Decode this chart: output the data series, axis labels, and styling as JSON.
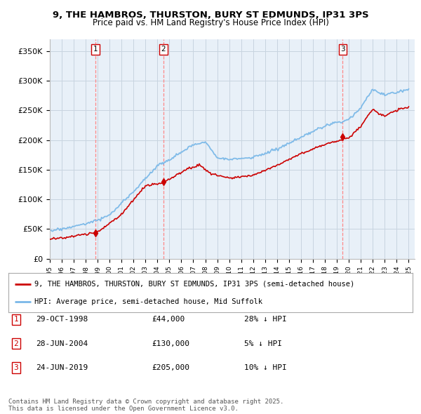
{
  "title_line1": "9, THE HAMBROS, THURSTON, BURY ST EDMUNDS, IP31 3PS",
  "title_line2": "Price paid vs. HM Land Registry's House Price Index (HPI)",
  "ylim": [
    0,
    370000
  ],
  "yticks": [
    0,
    50000,
    100000,
    150000,
    200000,
    250000,
    300000,
    350000
  ],
  "ytick_labels": [
    "£0",
    "£50K",
    "£100K",
    "£150K",
    "£200K",
    "£250K",
    "£300K",
    "£350K"
  ],
  "sale_dates": [
    1998.83,
    2004.49,
    2019.49
  ],
  "sale_prices": [
    44000,
    130000,
    205000
  ],
  "sale_labels": [
    "1",
    "2",
    "3"
  ],
  "legend_house": "9, THE HAMBROS, THURSTON, BURY ST EDMUNDS, IP31 3PS (semi-detached house)",
  "legend_hpi": "HPI: Average price, semi-detached house, Mid Suffolk",
  "table_entries": [
    {
      "label": "1",
      "date": "29-OCT-1998",
      "price": "£44,000",
      "hpi": "28% ↓ HPI"
    },
    {
      "label": "2",
      "date": "28-JUN-2004",
      "price": "£130,000",
      "hpi": "5% ↓ HPI"
    },
    {
      "label": "3",
      "date": "24-JUN-2019",
      "price": "£205,000",
      "hpi": "10% ↓ HPI"
    }
  ],
  "footer": "Contains HM Land Registry data © Crown copyright and database right 2025.\nThis data is licensed under the Open Government Licence v3.0.",
  "house_color": "#cc0000",
  "hpi_color": "#7ab8e8",
  "vline_color": "#ff8888",
  "chart_bg": "#e8f0f8",
  "background_color": "#ffffff",
  "grid_color": "#c8d4e0"
}
